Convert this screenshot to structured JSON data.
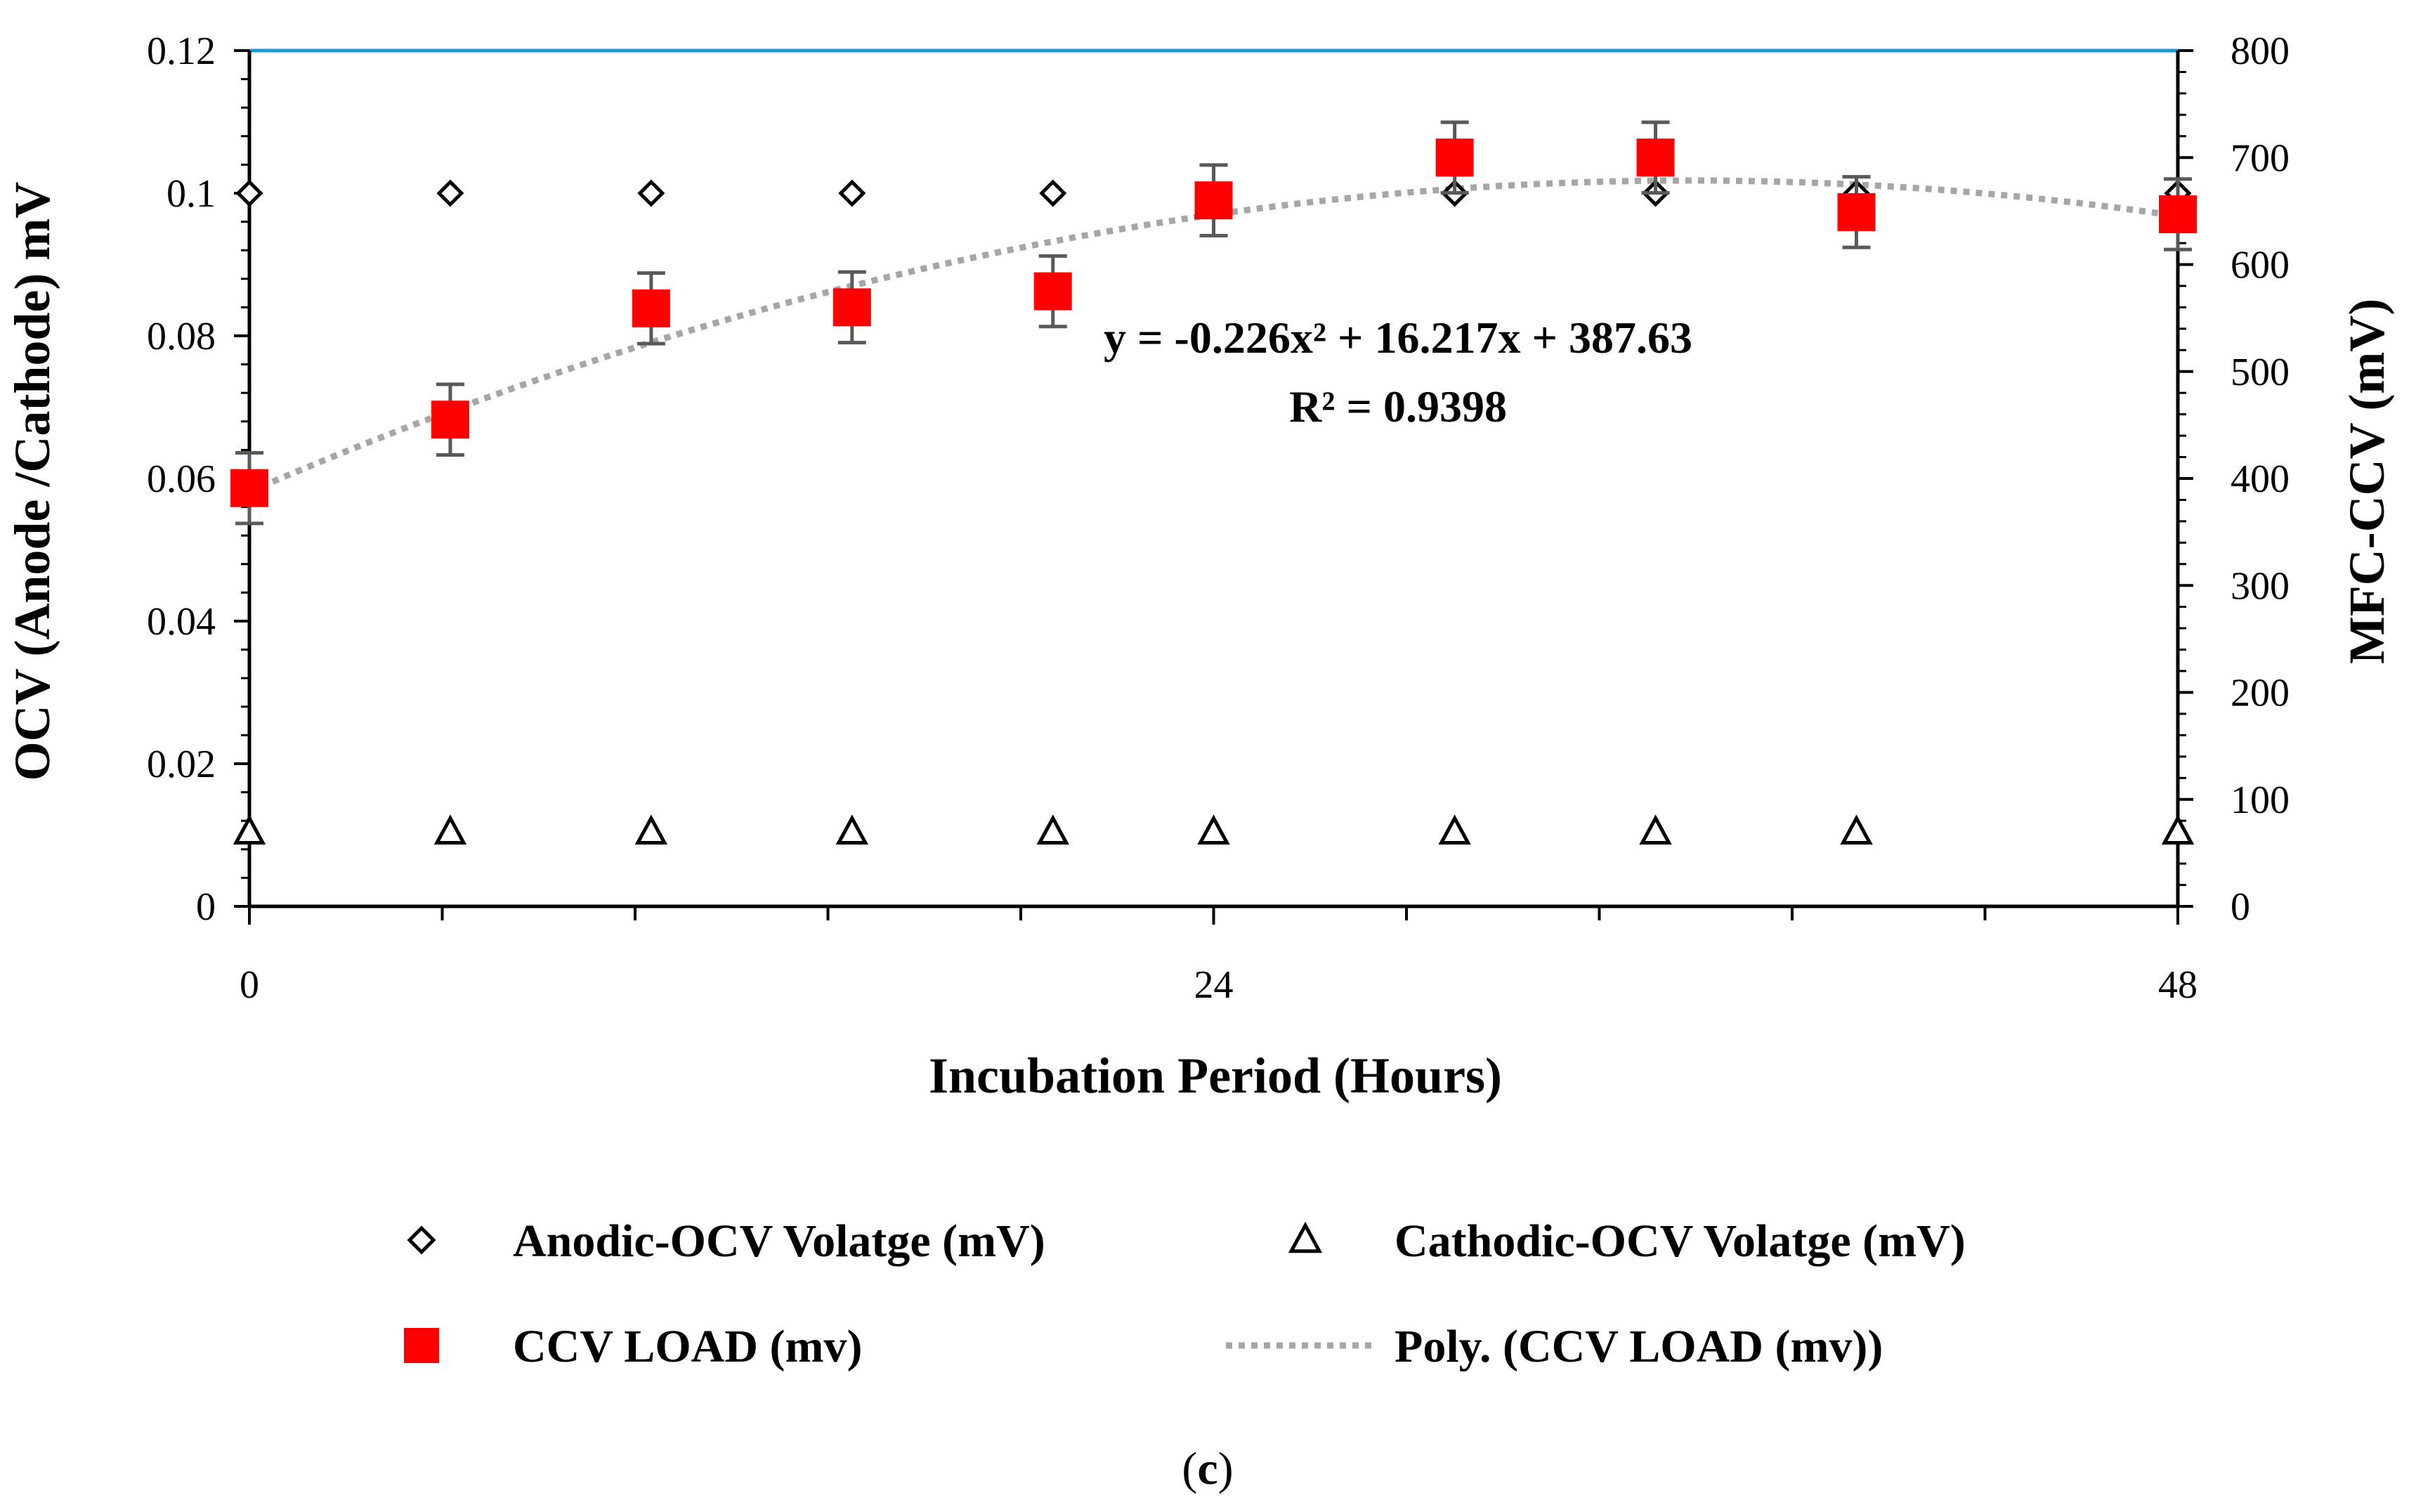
{
  "chart_data": {
    "type": "scatter",
    "caption_label": "c",
    "xlabel": "Incubation Period (Hours)",
    "ylabel_left": "OCV (Anode /Cathode) mV",
    "ylabel_right": "MFC-CCV (mV)",
    "xlim": [
      0,
      48
    ],
    "ylim_left": [
      0,
      0.12
    ],
    "ylim_right": [
      0,
      800
    ],
    "x_ticks": [
      "0",
      "24",
      "48"
    ],
    "x_tick_values": [
      0,
      24,
      48
    ],
    "x_minor_step": 4.8,
    "left_ticks": [
      "0",
      "0.02",
      "0.04",
      "0.06",
      "0.08",
      "0.1",
      "0.12"
    ],
    "left_tick_values": [
      0,
      0.02,
      0.04,
      0.06,
      0.08,
      0.1,
      0.12
    ],
    "right_ticks": [
      "0",
      "100",
      "200",
      "300",
      "400",
      "500",
      "600",
      "700",
      "800"
    ],
    "right_tick_values": [
      0,
      100,
      200,
      300,
      400,
      500,
      600,
      700,
      800
    ],
    "series": [
      {
        "name": "Anodic-OCV Volatge (mV)",
        "axis": "left",
        "marker": "diamond",
        "x": [
          0,
          5,
          10,
          15,
          20,
          24,
          30,
          35,
          40,
          48
        ],
        "y": [
          0.1,
          0.1,
          0.1,
          0.1,
          0.1,
          0.1,
          0.1,
          0.1,
          0.1,
          0.1
        ]
      },
      {
        "name": "Cathodic-OCV Volatge (mV)",
        "axis": "left",
        "marker": "triangle",
        "x": [
          0,
          5,
          10,
          15,
          20,
          24,
          30,
          35,
          40,
          48
        ],
        "y": [
          0.01,
          0.01,
          0.01,
          0.01,
          0.01,
          0.01,
          0.01,
          0.01,
          0.01,
          0.01
        ]
      },
      {
        "name": "CCV LOAD (mv)",
        "axis": "right",
        "marker": "square",
        "color": "#ff0000",
        "x": [
          0,
          5,
          10,
          15,
          20,
          24,
          30,
          35,
          40,
          48
        ],
        "y": [
          391,
          455,
          559,
          560,
          575,
          660,
          700,
          700,
          649,
          647
        ],
        "error": [
          33,
          33,
          33,
          33,
          33,
          33,
          33,
          33,
          33,
          33
        ]
      }
    ],
    "trendline": {
      "name": "Poly. (CCV LOAD (mv))",
      "axis": "right",
      "type": "polynomial",
      "coefficients": [
        -0.226,
        16.217,
        387.63
      ],
      "equation": "y = -0.226x² + 16.217x + 387.63",
      "r_squared": "R² = 0.9398",
      "color": "#a6a6a6"
    },
    "top_line_color": "#1c9ad6",
    "legend_placement": "bottom"
  }
}
